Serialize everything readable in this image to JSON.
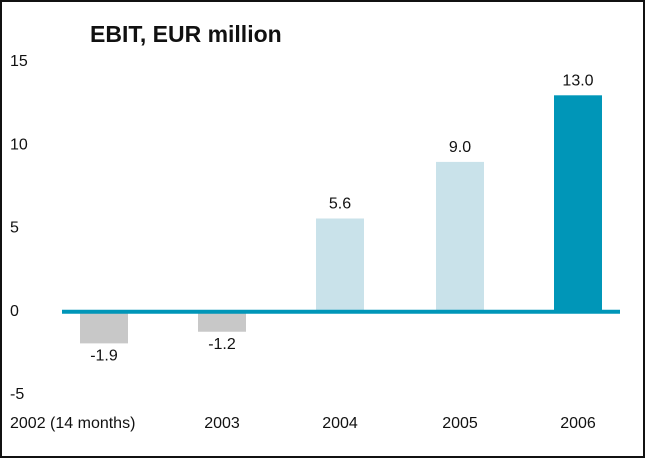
{
  "chart_data": {
    "type": "bar",
    "title": "EBIT, EUR million",
    "categories": [
      "2002 (14 months)",
      "2003",
      "2004",
      "2005",
      "2006"
    ],
    "values": [
      -1.9,
      -1.2,
      5.6,
      9,
      13
    ],
    "value_labels": [
      "-1.9",
      "-1.2",
      "5.6",
      "9.0",
      "13.0"
    ],
    "colors": [
      "#c8c8c8",
      "#c8c8c8",
      "#c9e2ea",
      "#c9e2ea",
      "#0096b8"
    ],
    "ylim": [
      -5,
      15
    ],
    "yticks": [
      -5,
      0,
      5,
      10,
      15
    ],
    "grid": false
  }
}
